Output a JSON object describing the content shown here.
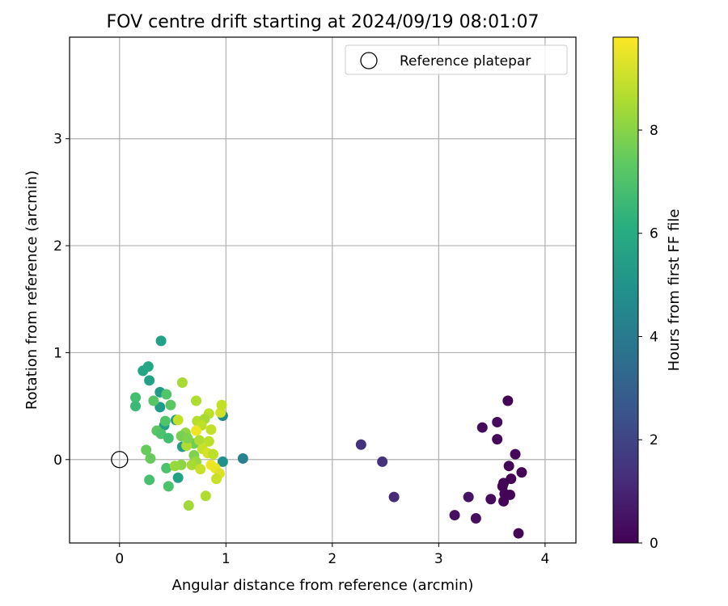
{
  "chart_data": {
    "type": "scatter",
    "title": "FOV centre drift starting at 2024/09/19 08:01:07",
    "xlabel": "Angular distance from reference (arcmin)",
    "ylabel": "Rotation from reference (arcmin)",
    "xlim": [
      -0.47,
      4.29
    ],
    "ylim": [
      -0.78,
      3.95
    ],
    "xticks": [
      0,
      1,
      2,
      3,
      4
    ],
    "yticks": [
      0,
      1,
      2,
      3
    ],
    "grid": true,
    "legend": {
      "position": "top-right",
      "entries": [
        "Reference platepar"
      ]
    },
    "reference_point": {
      "x": 0,
      "y": 0,
      "label": "Reference platepar"
    },
    "colorbar": {
      "label": "Hours from first FF file",
      "colormap": "viridis",
      "range": [
        0,
        9.8
      ],
      "ticks": [
        0,
        2,
        4,
        6,
        8
      ]
    },
    "points": [
      {
        "x": 3.65,
        "y": 0.55,
        "h": 0.1
      },
      {
        "x": 3.41,
        "y": 0.3,
        "h": 0.3
      },
      {
        "x": 3.55,
        "y": 0.35,
        "h": 0.3
      },
      {
        "x": 3.55,
        "y": 0.19,
        "h": 0.2
      },
      {
        "x": 3.72,
        "y": 0.05,
        "h": 0.2
      },
      {
        "x": 3.66,
        "y": -0.06,
        "h": 0.1
      },
      {
        "x": 3.78,
        "y": -0.12,
        "h": 0.1
      },
      {
        "x": 3.68,
        "y": -0.18,
        "h": 0.1
      },
      {
        "x": 3.61,
        "y": -0.22,
        "h": 0.1
      },
      {
        "x": 3.6,
        "y": -0.25,
        "h": 0.1
      },
      {
        "x": 3.62,
        "y": -0.32,
        "h": 0.1
      },
      {
        "x": 3.67,
        "y": -0.33,
        "h": 0.1
      },
      {
        "x": 3.61,
        "y": -0.39,
        "h": 0.1
      },
      {
        "x": 3.49,
        "y": -0.37,
        "h": 0.3
      },
      {
        "x": 3.28,
        "y": -0.35,
        "h": 0.5
      },
      {
        "x": 3.15,
        "y": -0.52,
        "h": 0.4
      },
      {
        "x": 3.35,
        "y": -0.55,
        "h": 0.4
      },
      {
        "x": 3.75,
        "y": -0.69,
        "h": 0.1
      },
      {
        "x": 2.27,
        "y": 0.14,
        "h": 1.4
      },
      {
        "x": 2.47,
        "y": -0.02,
        "h": 1.4
      },
      {
        "x": 2.58,
        "y": -0.35,
        "h": 1.2
      },
      {
        "x": 1.16,
        "y": 0.01,
        "h": 4.3
      },
      {
        "x": 0.97,
        "y": 0.41,
        "h": 4.6
      },
      {
        "x": 0.97,
        "y": -0.02,
        "h": 4.9
      },
      {
        "x": 0.39,
        "y": 1.11,
        "h": 5.6
      },
      {
        "x": 0.22,
        "y": 0.83,
        "h": 5.7
      },
      {
        "x": 0.27,
        "y": 0.87,
        "h": 5.9
      },
      {
        "x": 0.28,
        "y": 0.74,
        "h": 5.6
      },
      {
        "x": 0.38,
        "y": 0.63,
        "h": 5.3
      },
      {
        "x": 0.38,
        "y": 0.49,
        "h": 5.3
      },
      {
        "x": 0.53,
        "y": 0.37,
        "h": 5.2
      },
      {
        "x": 0.42,
        "y": 0.32,
        "h": 5.5
      },
      {
        "x": 0.59,
        "y": 0.12,
        "h": 5.4
      },
      {
        "x": 0.55,
        "y": -0.17,
        "h": 5.6
      },
      {
        "x": 0.15,
        "y": 0.58,
        "h": 6.8
      },
      {
        "x": 0.15,
        "y": 0.5,
        "h": 6.6
      },
      {
        "x": 0.32,
        "y": 0.55,
        "h": 7.2
      },
      {
        "x": 0.44,
        "y": 0.61,
        "h": 7.1
      },
      {
        "x": 0.48,
        "y": 0.51,
        "h": 7.3
      },
      {
        "x": 0.43,
        "y": 0.36,
        "h": 7.1
      },
      {
        "x": 0.35,
        "y": 0.27,
        "h": 7.3
      },
      {
        "x": 0.39,
        "y": 0.24,
        "h": 7.0
      },
      {
        "x": 0.46,
        "y": 0.2,
        "h": 6.8
      },
      {
        "x": 0.25,
        "y": 0.09,
        "h": 7.5
      },
      {
        "x": 0.29,
        "y": 0.01,
        "h": 7.5
      },
      {
        "x": 0.44,
        "y": -0.08,
        "h": 7.0
      },
      {
        "x": 0.28,
        "y": -0.19,
        "h": 6.9
      },
      {
        "x": 0.46,
        "y": -0.25,
        "h": 7.0
      },
      {
        "x": 0.65,
        "y": -0.43,
        "h": 8.4
      },
      {
        "x": 0.59,
        "y": 0.72,
        "h": 8.5
      },
      {
        "x": 0.72,
        "y": 0.55,
        "h": 8.6
      },
      {
        "x": 0.84,
        "y": 0.43,
        "h": 8.8
      },
      {
        "x": 0.95,
        "y": 0.44,
        "h": 9.1
      },
      {
        "x": 0.96,
        "y": 0.51,
        "h": 8.9
      },
      {
        "x": 0.55,
        "y": 0.37,
        "h": 8.9
      },
      {
        "x": 0.73,
        "y": 0.36,
        "h": 8.7
      },
      {
        "x": 0.8,
        "y": 0.38,
        "h": 8.5
      },
      {
        "x": 0.77,
        "y": 0.32,
        "h": 8.8
      },
      {
        "x": 0.62,
        "y": 0.25,
        "h": 8.2
      },
      {
        "x": 0.58,
        "y": 0.22,
        "h": 7.8
      },
      {
        "x": 0.72,
        "y": 0.27,
        "h": 9.6
      },
      {
        "x": 0.86,
        "y": 0.28,
        "h": 8.9
      },
      {
        "x": 0.66,
        "y": 0.16,
        "h": 8.0
      },
      {
        "x": 0.7,
        "y": 0.15,
        "h": 7.6
      },
      {
        "x": 0.75,
        "y": 0.18,
        "h": 8.6
      },
      {
        "x": 0.84,
        "y": 0.17,
        "h": 8.8
      },
      {
        "x": 0.63,
        "y": 0.13,
        "h": 8.6
      },
      {
        "x": 0.78,
        "y": 0.1,
        "h": 9.0
      },
      {
        "x": 0.83,
        "y": 0.06,
        "h": 9.2
      },
      {
        "x": 0.88,
        "y": 0.05,
        "h": 8.8
      },
      {
        "x": 0.7,
        "y": 0.04,
        "h": 7.9
      },
      {
        "x": 0.72,
        "y": -0.02,
        "h": 8.3
      },
      {
        "x": 0.68,
        "y": -0.05,
        "h": 8.5
      },
      {
        "x": 0.76,
        "y": -0.09,
        "h": 9.0
      },
      {
        "x": 0.86,
        "y": -0.05,
        "h": 9.6
      },
      {
        "x": 0.9,
        "y": -0.08,
        "h": 9.5
      },
      {
        "x": 0.94,
        "y": -0.13,
        "h": 9.3
      },
      {
        "x": 0.91,
        "y": -0.18,
        "h": 9.0
      },
      {
        "x": 0.81,
        "y": -0.34,
        "h": 8.6
      },
      {
        "x": 0.58,
        "y": -0.05,
        "h": 8.1
      },
      {
        "x": 0.52,
        "y": -0.06,
        "h": 8.3
      },
      {
        "x": 0.64,
        "y": 0.2,
        "h": 7.9
      }
    ]
  }
}
